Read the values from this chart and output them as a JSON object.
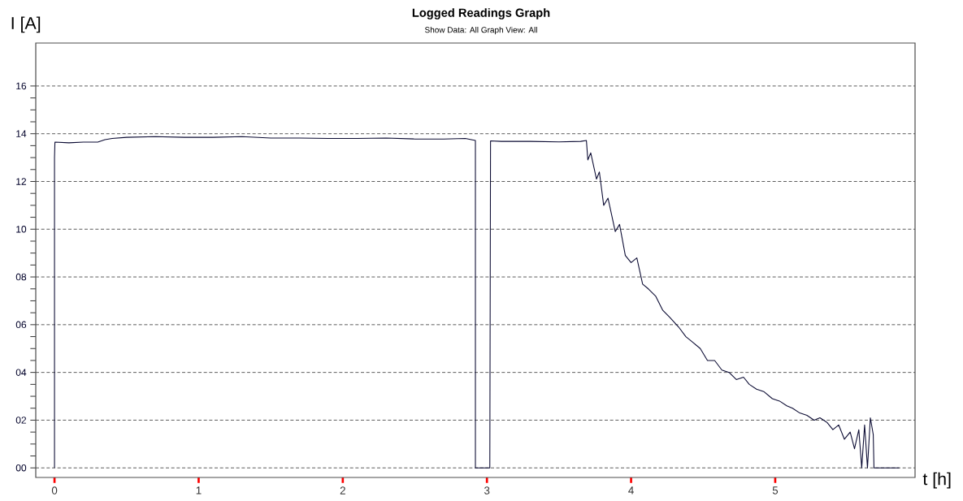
{
  "chart_data": {
    "type": "line",
    "title": "Logged Readings Graph",
    "subtitle": "Show Data: All   Graph View: All",
    "xlabel": "t [h]",
    "ylabel": "I [A]",
    "xlim": [
      -0.13,
      5.97
    ],
    "ylim": [
      -0.4,
      17.8
    ],
    "xticks": [
      0,
      1,
      2,
      3,
      4,
      5
    ],
    "yticks": [
      {
        "value": 0,
        "label": "00"
      },
      {
        "value": 2,
        "label": "02"
      },
      {
        "value": 4,
        "label": "04"
      },
      {
        "value": 6,
        "label": "06"
      },
      {
        "value": 8,
        "label": "08"
      },
      {
        "value": 10,
        "label": "10"
      },
      {
        "value": 12,
        "label": "12"
      },
      {
        "value": 14,
        "label": "14"
      },
      {
        "value": 16,
        "label": "16"
      }
    ],
    "grid": "y",
    "marker": "none",
    "line_style": "solid",
    "series": [
      {
        "color": "#0a0a32",
        "x": [
          0,
          0,
          0.003,
          0.1,
          0.2,
          0.3,
          0.35,
          0.4,
          0.5,
          0.7,
          0.9,
          1.1,
          1.3,
          1.5,
          1.7,
          1.9,
          2.1,
          2.3,
          2.5,
          2.7,
          2.85,
          2.92,
          2.92,
          3.02,
          3.025,
          3.1,
          3.3,
          3.5,
          3.65,
          3.69,
          3.7,
          3.72,
          3.76,
          3.78,
          3.81,
          3.84,
          3.89,
          3.92,
          3.96,
          4.0,
          4.04,
          4.08,
          4.12,
          4.17,
          4.22,
          4.27,
          4.33,
          4.38,
          4.42,
          4.48,
          4.53,
          4.58,
          4.63,
          4.68,
          4.73,
          4.78,
          4.82,
          4.87,
          4.92,
          4.98,
          5.03,
          5.08,
          5.12,
          5.17,
          5.22,
          5.27,
          5.31,
          5.36,
          5.4,
          5.44,
          5.48,
          5.52,
          5.55,
          5.58,
          5.6,
          5.62,
          5.64,
          5.66,
          5.68,
          5.685,
          5.86
        ],
        "values": [
          0,
          13.0,
          13.65,
          13.62,
          13.65,
          13.65,
          13.75,
          13.8,
          13.85,
          13.88,
          13.85,
          13.85,
          13.88,
          13.82,
          13.82,
          13.8,
          13.8,
          13.82,
          13.78,
          13.78,
          13.8,
          13.72,
          0,
          0,
          13.7,
          13.68,
          13.68,
          13.66,
          13.68,
          13.72,
          12.9,
          13.2,
          12.1,
          12.4,
          11.0,
          11.3,
          9.9,
          10.2,
          8.9,
          8.6,
          8.8,
          7.7,
          7.5,
          7.2,
          6.6,
          6.3,
          5.9,
          5.5,
          5.3,
          5.0,
          4.5,
          4.5,
          4.1,
          4.0,
          3.7,
          3.8,
          3.5,
          3.3,
          3.2,
          2.9,
          2.8,
          2.6,
          2.5,
          2.3,
          2.2,
          2.0,
          2.1,
          1.9,
          1.6,
          1.8,
          1.2,
          1.5,
          0.8,
          1.6,
          0,
          1.8,
          0,
          2.1,
          1.4,
          0,
          0
        ]
      }
    ]
  }
}
